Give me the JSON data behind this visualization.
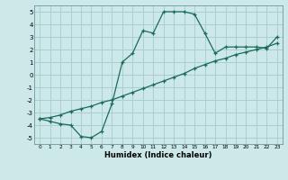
{
  "title": "",
  "xlabel": "Humidex (Indice chaleur)",
  "bg_color": "#cce8e8",
  "grid_color": "#aacfcf",
  "line_color": "#1a6b5a",
  "xlim": [
    -0.5,
    23.5
  ],
  "ylim": [
    -5.5,
    5.5
  ],
  "xticks": [
    0,
    1,
    2,
    3,
    4,
    5,
    6,
    7,
    8,
    9,
    10,
    11,
    12,
    13,
    14,
    15,
    16,
    17,
    18,
    19,
    20,
    21,
    22,
    23
  ],
  "yticks": [
    -5,
    -4,
    -3,
    -2,
    -1,
    0,
    1,
    2,
    3,
    4,
    5
  ],
  "line1_x": [
    0,
    1,
    2,
    3,
    4,
    5,
    6,
    7,
    8,
    9,
    10,
    11,
    12,
    13,
    14,
    15,
    16,
    17,
    18,
    19,
    20,
    21,
    22,
    23
  ],
  "line1_y": [
    -3.5,
    -3.7,
    -3.9,
    -4.0,
    -4.9,
    -5.0,
    -4.5,
    -2.3,
    1.0,
    1.7,
    3.5,
    3.3,
    5.0,
    5.0,
    5.0,
    4.8,
    3.3,
    1.7,
    2.2,
    2.2,
    2.2,
    2.2,
    2.1,
    3.0
  ],
  "line2_x": [
    0,
    1,
    2,
    3,
    4,
    5,
    6,
    7,
    8,
    9,
    10,
    11,
    12,
    13,
    14,
    15,
    16,
    17,
    18,
    19,
    20,
    21,
    22,
    23
  ],
  "line2_y": [
    -3.5,
    -3.4,
    -3.2,
    -2.9,
    -2.7,
    -2.5,
    -2.2,
    -2.0,
    -1.7,
    -1.4,
    -1.1,
    -0.8,
    -0.5,
    -0.2,
    0.1,
    0.5,
    0.8,
    1.1,
    1.3,
    1.6,
    1.8,
    2.0,
    2.2,
    2.5
  ],
  "xlabel_fontsize": 6.0,
  "xtick_fontsize": 4.2,
  "ytick_fontsize": 5.0
}
